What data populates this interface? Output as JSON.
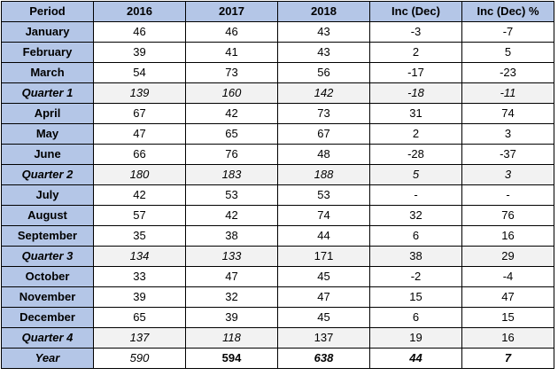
{
  "table": {
    "headers": [
      "Period",
      "2016",
      "2017",
      "2018",
      "Inc (Dec)",
      "Inc (Dec) %"
    ],
    "rows": [
      {
        "period": "January",
        "type": "month",
        "values": [
          "46",
          "46",
          "43",
          "-3",
          "-7"
        ]
      },
      {
        "period": "February",
        "type": "month",
        "values": [
          "39",
          "41",
          "43",
          "2",
          "5"
        ]
      },
      {
        "period": "March",
        "type": "month",
        "values": [
          "54",
          "73",
          "56",
          "-17",
          "-23"
        ]
      },
      {
        "period": "Quarter 1",
        "type": "quarter",
        "values": [
          "139",
          "160",
          "142",
          "-18",
          "-11"
        ]
      },
      {
        "period": "April",
        "type": "month",
        "values": [
          "67",
          "42",
          "73",
          "31",
          "74"
        ]
      },
      {
        "period": "May",
        "type": "month",
        "values": [
          "47",
          "65",
          "67",
          "2",
          "3"
        ]
      },
      {
        "period": "June",
        "type": "month",
        "values": [
          "66",
          "76",
          "48",
          "-28",
          "-37"
        ]
      },
      {
        "period": "Quarter 2",
        "type": "quarter",
        "values": [
          "180",
          "183",
          "188",
          "5",
          "3"
        ]
      },
      {
        "period": "July",
        "type": "month",
        "values": [
          "42",
          "53",
          "53",
          "-",
          "-"
        ]
      },
      {
        "period": "August",
        "type": "month",
        "values": [
          "57",
          "42",
          "74",
          "32",
          "76"
        ]
      },
      {
        "period": "September",
        "type": "month",
        "values": [
          "35",
          "38",
          "44",
          "6",
          "16"
        ]
      },
      {
        "period": "Quarter 3",
        "type": "quarter",
        "values": [
          "134",
          "133",
          "171",
          "38",
          "29"
        ]
      },
      {
        "period": "October",
        "type": "month",
        "values": [
          "33",
          "47",
          "45",
          "-2",
          "-4"
        ]
      },
      {
        "period": "November",
        "type": "month",
        "values": [
          "39",
          "32",
          "47",
          "15",
          "47"
        ]
      },
      {
        "period": "December",
        "type": "month",
        "values": [
          "65",
          "39",
          "45",
          "6",
          "15"
        ]
      },
      {
        "period": "Quarter 4",
        "type": "quarter",
        "values": [
          "137",
          "118",
          "137",
          "19",
          "16"
        ]
      },
      {
        "period": "Year",
        "type": "year",
        "values": [
          "590",
          "594",
          "638",
          "44",
          "7"
        ]
      }
    ]
  }
}
